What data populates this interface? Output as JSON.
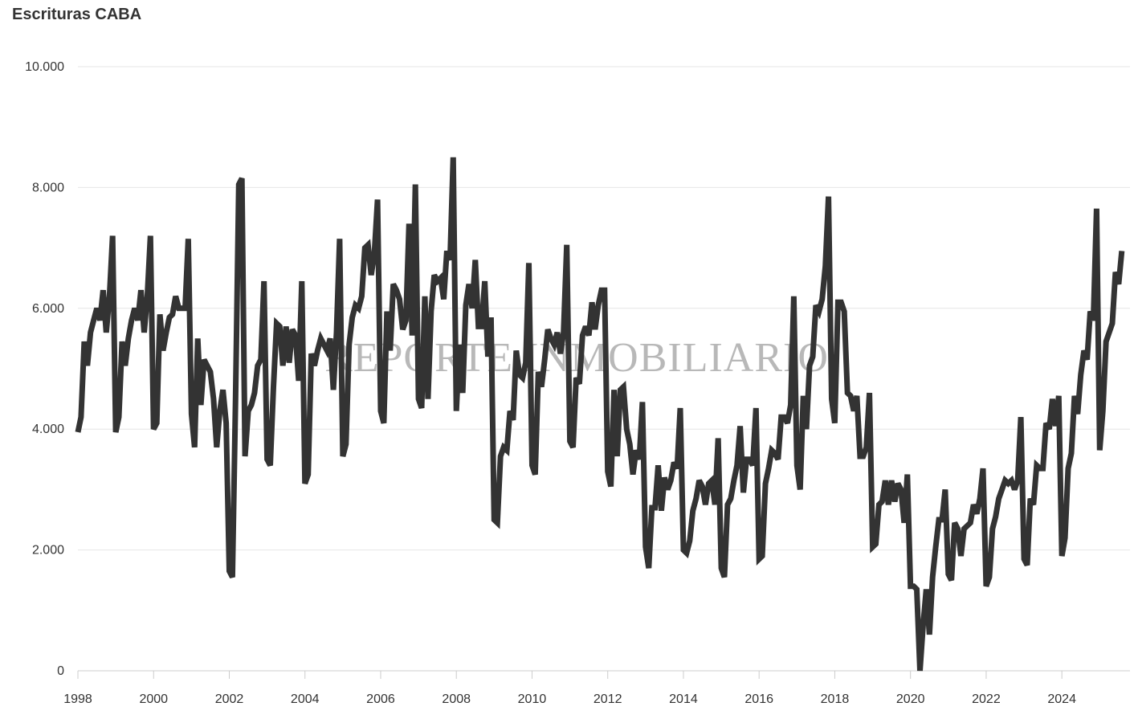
{
  "chart_data": {
    "type": "line",
    "title": "Escrituras CABA",
    "watermark": "REPORTE INMOBILIARIO",
    "xlim": [
      1998,
      2025.8
    ],
    "ylim": [
      0,
      10000
    ],
    "x_ticks": [
      1998,
      2000,
      2002,
      2004,
      2006,
      2008,
      2010,
      2012,
      2014,
      2016,
      2018,
      2020,
      2022,
      2024
    ],
    "y_ticks": [
      0,
      2000,
      4000,
      6000,
      8000,
      10000
    ],
    "y_tick_labels": [
      "0",
      "2.000",
      "4.000",
      "6.000",
      "8.000",
      "10.000"
    ],
    "grid": true,
    "line_color": "#333333",
    "series": [
      {
        "start": "1998-01",
        "frequency": "monthly",
        "values": [
          3950,
          4200,
          5450,
          5050,
          5600,
          5800,
          6000,
          5800,
          6300,
          5600,
          6200,
          7200,
          3950,
          4200,
          5450,
          5050,
          5500,
          5800,
          6000,
          5800,
          6300,
          5600,
          6200,
          7200,
          4000,
          4100,
          5900,
          5300,
          5600,
          5850,
          5900,
          6200,
          6000,
          6000,
          6000,
          7150,
          4250,
          3700,
          5500,
          4400,
          5150,
          5050,
          4950,
          4500,
          3700,
          4300,
          4650,
          4100,
          1650,
          1550,
          4500,
          8050,
          8150,
          3550,
          4300,
          4400,
          4600,
          5050,
          5150,
          6450,
          3500,
          3400,
          4700,
          5750,
          5700,
          5050,
          5700,
          5100,
          5650,
          5550,
          4800,
          6450,
          3100,
          3250,
          5250,
          5050,
          5300,
          5500,
          5400,
          5300,
          5500,
          4650,
          5600,
          7150,
          3550,
          3750,
          5400,
          5850,
          6050,
          6000,
          6200,
          7000,
          7050,
          6550,
          6900,
          7800,
          4300,
          4100,
          5950,
          5300,
          6400,
          6300,
          6150,
          5650,
          5800,
          7400,
          5550,
          8050,
          4500,
          4350,
          6200,
          4500,
          5950,
          6550,
          6450,
          6500,
          6150,
          6950,
          6800,
          8500,
          4300,
          5400,
          4600,
          6050,
          6400,
          6000,
          6800,
          5700,
          5700,
          6450,
          5200,
          5850,
          2500,
          2450,
          3550,
          3700,
          3650,
          4300,
          4150,
          5300,
          4900,
          4850,
          5100,
          6750,
          3400,
          3250,
          4950,
          4700,
          5150,
          5650,
          5500,
          5400,
          5600,
          5250,
          5600,
          7050,
          3800,
          3700,
          4850,
          4750,
          5550,
          5700,
          5550,
          6100,
          5650,
          6050,
          6300,
          6300,
          3300,
          3050,
          4650,
          3550,
          4650,
          4700,
          4000,
          3750,
          3250,
          3650,
          3500,
          4450,
          2050,
          1700,
          2700,
          2700,
          3400,
          2650,
          3200,
          3000,
          3150,
          3450,
          3350,
          4350,
          2000,
          1950,
          2150,
          2650,
          2850,
          3150,
          3050,
          2750,
          3100,
          3150,
          2750,
          3850,
          1700,
          1550,
          2750,
          2850,
          3150,
          3400,
          4050,
          2950,
          3500,
          3500,
          3400,
          4350,
          1850,
          1900,
          3100,
          3350,
          3650,
          3600,
          3500,
          4200,
          4200,
          4100,
          4400,
          6200,
          3400,
          3000,
          4550,
          4000,
          5050,
          5200,
          6050,
          5950,
          6150,
          6700,
          7850,
          4500,
          4100,
          6100,
          6100,
          5950,
          4600,
          4550,
          4300,
          4550,
          3550,
          3550,
          3700,
          4600,
          2050,
          2100,
          2750,
          2800,
          3150,
          2750,
          3150,
          2800,
          3100,
          3000,
          2450,
          3250,
          1400,
          1400,
          1350,
          0,
          750,
          1350,
          600,
          1550,
          2050,
          2500,
          2500,
          3000,
          1600,
          1500,
          2450,
          2350,
          1900,
          2350,
          2400,
          2450,
          2750,
          2600,
          2850,
          3350,
          1400,
          1550,
          2350,
          2550,
          2850,
          3000,
          3150,
          3100,
          3150,
          3000,
          3150,
          4200,
          1850,
          1750,
          2850,
          2750,
          3400,
          3350,
          3350,
          4100,
          4000,
          4500,
          4050,
          4550,
          1900,
          2200,
          3350,
          3600,
          4550,
          4250,
          4900,
          5300,
          5150,
          5950,
          5800,
          7650,
          3650,
          4300,
          5450,
          5600,
          5750,
          6600,
          6400,
          6950
        ]
      }
    ]
  }
}
